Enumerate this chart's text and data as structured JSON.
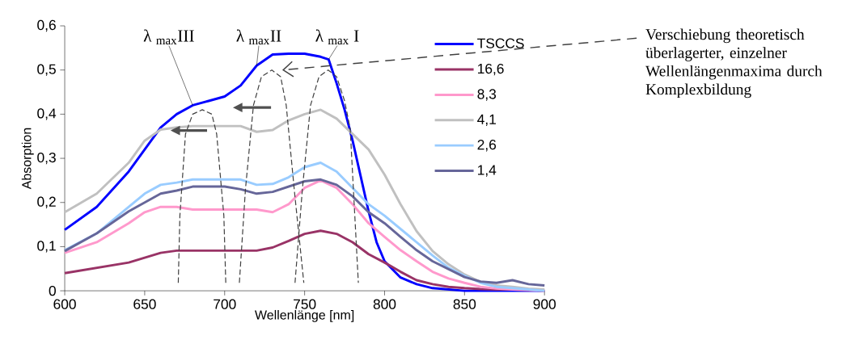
{
  "chart_data": {
    "type": "line",
    "xlabel": "Wellenlänge [nm]",
    "ylabel": "Absorption",
    "xlim": [
      600,
      900
    ],
    "xticks": [
      600,
      650,
      700,
      750,
      800,
      850,
      900
    ],
    "ylim": [
      0,
      0.6
    ],
    "yticks": [
      0,
      {
        "value": 0.1,
        "label": "0,1"
      },
      {
        "value": 0.2,
        "label": "0,2"
      },
      {
        "value": 0.3,
        "label": "0,3"
      },
      {
        "value": 0.4,
        "label": "0,4"
      },
      {
        "value": 0.5,
        "label": "0,5"
      },
      {
        "value": 0.6,
        "label": "0,6"
      }
    ],
    "grid": false,
    "legend": "top right",
    "marker": "none",
    "line_style": "solid",
    "x": [
      600,
      620,
      640,
      650,
      660,
      670,
      680,
      690,
      700,
      710,
      720,
      730,
      740,
      750,
      760,
      770,
      780,
      790,
      800,
      810,
      820,
      830,
      840,
      850,
      860,
      870,
      880,
      890,
      900
    ],
    "series": [
      {
        "name": "TSCCS",
        "color": "#0000ff",
        "x": [
          600,
          620,
          640,
          650,
          660,
          670,
          680,
          690,
          700,
          710,
          720,
          730,
          740,
          750,
          760,
          765,
          770,
          775,
          780,
          785,
          790,
          795,
          800,
          810,
          820,
          830,
          850,
          900
        ],
        "values": [
          0.138,
          0.19,
          0.27,
          0.32,
          0.37,
          0.4,
          0.42,
          0.43,
          0.44,
          0.465,
          0.51,
          0.535,
          0.537,
          0.537,
          0.53,
          0.524,
          0.47,
          0.41,
          0.34,
          0.26,
          0.18,
          0.11,
          0.067,
          0.03,
          0.015,
          0.006,
          0,
          0
        ]
      },
      {
        "name": "16,6",
        "color": "#993366",
        "values": [
          0.04,
          0.052,
          0.064,
          0.075,
          0.086,
          0.091,
          0.091,
          0.091,
          0.091,
          0.091,
          0.091,
          0.098,
          0.113,
          0.129,
          0.136,
          0.129,
          0.11,
          0.083,
          0.064,
          0.043,
          0.024,
          0.015,
          0.009,
          0.006,
          0.004,
          0.003,
          0.003,
          0.002,
          0
        ]
      },
      {
        "name": "8,3",
        "color": "#ff99cc",
        "values": [
          0.086,
          0.11,
          0.153,
          0.178,
          0.19,
          0.19,
          0.184,
          0.184,
          0.184,
          0.184,
          0.184,
          0.178,
          0.196,
          0.233,
          0.25,
          0.233,
          0.196,
          0.153,
          0.122,
          0.092,
          0.067,
          0.043,
          0.028,
          0.018,
          0.009,
          0.005,
          0.003,
          0.002,
          0
        ]
      },
      {
        "name": "4,1",
        "color": "#c0c0c0",
        "values": [
          0.178,
          0.22,
          0.29,
          0.34,
          0.365,
          0.37,
          0.373,
          0.373,
          0.373,
          0.373,
          0.36,
          0.364,
          0.386,
          0.4,
          0.41,
          0.39,
          0.355,
          0.32,
          0.263,
          0.196,
          0.135,
          0.09,
          0.06,
          0.037,
          0.02,
          0.012,
          0.009,
          0.005,
          0.003
        ]
      },
      {
        "name": "2,6",
        "color": "#99ccff",
        "values": [
          0.092,
          0.13,
          0.19,
          0.22,
          0.24,
          0.245,
          0.252,
          0.252,
          0.252,
          0.252,
          0.24,
          0.242,
          0.257,
          0.28,
          0.29,
          0.27,
          0.233,
          0.196,
          0.17,
          0.14,
          0.11,
          0.08,
          0.052,
          0.034,
          0.018,
          0.009,
          0.006,
          0.003,
          0
        ]
      },
      {
        "name": "1,4",
        "color": "#666699",
        "values": [
          0.09,
          0.13,
          0.18,
          0.2,
          0.22,
          0.227,
          0.236,
          0.236,
          0.236,
          0.23,
          0.22,
          0.224,
          0.236,
          0.248,
          0.252,
          0.24,
          0.214,
          0.178,
          0.153,
          0.122,
          0.092,
          0.067,
          0.049,
          0.031,
          0.021,
          0.018,
          0.024,
          0.015,
          0.012
        ]
      },
      {
        "color": "#404040",
        "line_style": "dashed",
        "x": [
          671,
          672,
          675.5,
          680,
          686,
          692,
          695,
          699.5,
          700.7
        ],
        "values": [
          0.018,
          0.17,
          0.355,
          0.4,
          0.41,
          0.4,
          0.355,
          0.17,
          0.018
        ]
      },
      {
        "color": "#404040",
        "line_style": "dashed",
        "x": [
          709.2,
          713,
          718,
          723,
          729.5,
          735,
          738.5,
          743.5,
          749.5
        ],
        "values": [
          0.018,
          0.23,
          0.42,
          0.485,
          0.5,
          0.485,
          0.42,
          0.23,
          0.018
        ]
      },
      {
        "color": "#404040",
        "line_style": "dashed",
        "x": [
          744,
          748.6,
          753.7,
          759,
          764.7,
          770,
          775,
          778.5,
          783.6
        ],
        "values": [
          0.018,
          0.23,
          0.42,
          0.485,
          0.5,
          0.485,
          0.43,
          0.367,
          0.018
        ]
      }
    ],
    "annotations": [
      {
        "text": "λ $_{max}$III",
        "x": 680,
        "y": 0.42
      },
      {
        "text": "λ $_{max}$II",
        "x": 720,
        "y": 0.51
      },
      {
        "text": "λ $_{max}$ I",
        "x": 765,
        "y": 0.524
      },
      "Verschiebung theoretisch überlagerter, einzelner Wellenlängenmaxima durch Komplexbildung"
    ]
  }
}
